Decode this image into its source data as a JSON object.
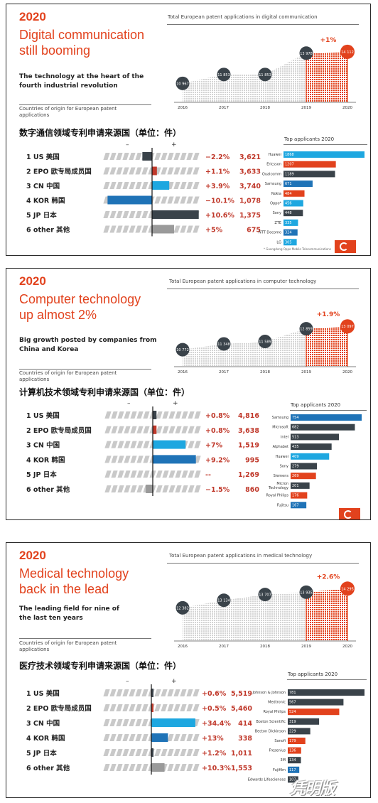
{
  "colors": {
    "accent": "#e2421d",
    "dark": "#3a434a",
    "blue": "#1f73b7",
    "light_blue": "#1ea7e0",
    "gray": "#9a9a9a"
  },
  "panels": [
    {
      "year": "2020",
      "headline": [
        "Digital communication",
        "still booming"
      ],
      "subhead": [
        "The technology at the heart of the",
        "fourth industrial revolution"
      ],
      "growth_title": "Total European patent applications in digital communication",
      "origin_label": [
        "Countries of origin for European patent",
        "applications"
      ],
      "cn_title": "数字通信领域专利申请来源国（单位：件）",
      "minus": "–",
      "plus": "+",
      "apps_title": "Top applicants 2020",
      "footnote": "* Guangdong Oppo Mobile Telecommunications"
    },
    {
      "year": "2020",
      "headline": [
        "Computer technology",
        "up almost 2%"
      ],
      "subhead": [
        "Big growth posted by companies from",
        "China and Korea"
      ],
      "growth_title": "Total European patent applications in computer technology",
      "origin_label": [
        "Countries of origin for European patent",
        "applications"
      ],
      "cn_title": "计算机技术领域专利申请来源国（单位：件）",
      "minus": "–",
      "plus": "+",
      "apps_title": "Top applicants 2020",
      "footnote": ""
    },
    {
      "year": "2020",
      "headline": [
        "Medical technology",
        "back in the lead"
      ],
      "subhead": [
        "The leading field for nine of",
        "the last ten years"
      ],
      "growth_title": "Total European patent applications in medical technology",
      "origin_label": [
        "Countries of origin for European patent",
        "applications"
      ],
      "cn_title": "医疗技术领域专利申请来源国（单位：件）",
      "minus": "–",
      "plus": "+",
      "apps_title": "Top applicants 2020",
      "footnote": ""
    }
  ],
  "watermark": "凭明版",
  "chart_data": [
    {
      "type": "area",
      "title": "Total European patent applications in digital communication",
      "x": [
        "2016",
        "2017",
        "2018",
        "2019",
        "2020"
      ],
      "values": [
        10967,
        11853,
        11853,
        13978,
        14112
      ],
      "change_label": "+1%"
    },
    {
      "type": "bar",
      "title": "Countries of origin for European patent applications",
      "categories": [
        "1 US 美国",
        "2 EPO 欧专局成员国",
        "3 CN 中国",
        "4 KOR 韩国",
        "5 JP 日本",
        "6 other 其他"
      ],
      "values": [
        3621,
        3633,
        3740,
        1078,
        1375,
        675
      ],
      "values_label": [
        "3,621",
        "3,633",
        "3,740",
        "1,078",
        "1,375",
        "675"
      ],
      "change_pct": [
        -2.2,
        1.1,
        3.9,
        -10.1,
        10.6,
        5
      ],
      "change_label": [
        "−2.2%",
        "+1.1%",
        "+3.9%",
        "−10.1%",
        "+10.6%",
        "+5%"
      ]
    },
    {
      "type": "bar",
      "title": "Top applicants 2020",
      "categories": [
        "Huawei",
        "Ericsson",
        "Qualcomm",
        "Samsung",
        "Nokia",
        "Oppo*",
        "Sony",
        "ZTE",
        "NTT Docomo",
        "LG"
      ],
      "values": [
        1868,
        1207,
        1189,
        671,
        484,
        456,
        448,
        335,
        324,
        305
      ]
    },
    {
      "type": "area",
      "title": "Total European patent applications in computer technology",
      "x": [
        "2016",
        "2017",
        "2018",
        "2019",
        "2020"
      ],
      "values": [
        10772,
        11348,
        11589,
        12859,
        13097
      ],
      "change_label": "+1.9%"
    },
    {
      "type": "bar",
      "title": "Countries of origin for European patent applications",
      "categories": [
        "1 US 美国",
        "2 EPO 欧专局成员国",
        "3 CN 中国",
        "4 KOR 韩国",
        "5 JP 日本",
        "6 other 其他"
      ],
      "values": [
        4816,
        3638,
        1519,
        995,
        1269,
        860
      ],
      "values_label": [
        "4,816",
        "3,638",
        "1,519",
        "995",
        "1,269",
        "860"
      ],
      "change_pct": [
        0.8,
        0.8,
        7,
        9.2,
        0,
        -1.5
      ],
      "change_label": [
        "+0.8%",
        "+0.8%",
        "+7%",
        "+9.2%",
        "--",
        "−1.5%"
      ]
    },
    {
      "type": "bar",
      "title": "Top applicants 2020",
      "categories": [
        "Samsung",
        "Microsoft",
        "Intel",
        "Alphabet",
        "Huawei",
        "Sony",
        "Siemens",
        "Micron Technology",
        "Royal Philips",
        "Fujitsu"
      ],
      "values": [
        754,
        682,
        513,
        435,
        409,
        279,
        269,
        201,
        176,
        167
      ]
    },
    {
      "type": "area",
      "title": "Total European patent applications in medical technology",
      "x": [
        "2016",
        "2017",
        "2018",
        "2019",
        "2020"
      ],
      "values": [
        12382,
        13134,
        13707,
        13935,
        14295
      ],
      "change_label": "+2.6%"
    },
    {
      "type": "bar",
      "title": "Countries of origin for European patent applications",
      "categories": [
        "1 US 美国",
        "2 EPO 欧专局成员国",
        "3 CN 中国",
        "4 KOR 韩国",
        "5 JP 日本",
        "6 other 其他"
      ],
      "values": [
        5519,
        5460,
        414,
        338,
        1011,
        1553
      ],
      "values_label": [
        "5,519",
        "5,460",
        "414",
        "338",
        "1,011",
        "1,553"
      ],
      "change_pct": [
        0.6,
        0.5,
        34.4,
        13,
        1.2,
        10.3
      ],
      "change_label": [
        "+0.6%",
        "+0.5%",
        "+34.4%",
        "+13%",
        "+1.2%",
        "+10.3%"
      ]
    },
    {
      "type": "bar",
      "title": "Top applicants 2020",
      "categories": [
        "Johnson & Johnson",
        "Medtronic",
        "Royal Philips",
        "Boston Scientific",
        "Becton Dickinson",
        "Sanofi",
        "Fresenius",
        "3M",
        "Fujifilm",
        "Edwards Lifesciences"
      ],
      "values": [
        781,
        567,
        524,
        319,
        229,
        179,
        136,
        134,
        117,
        107
      ]
    }
  ]
}
